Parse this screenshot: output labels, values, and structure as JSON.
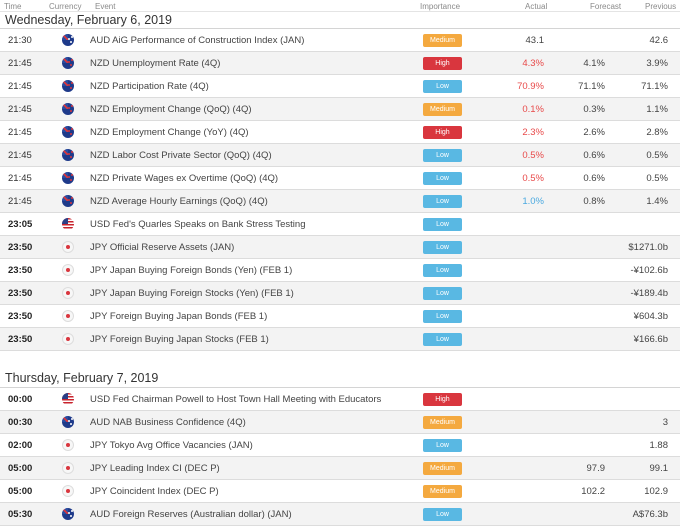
{
  "header": {
    "time": "Time",
    "currency": "Currency",
    "event": "Event",
    "importance": "Importance",
    "actual": "Actual",
    "forecast": "Forecast",
    "previous": "Previous"
  },
  "days": [
    {
      "label": "Wednesday, February 6, 2019",
      "rows": [
        {
          "time": "21:30",
          "bold": false,
          "flag": "au-flag-icon",
          "event": "AUD AiG Performance of Construction Index (JAN)",
          "importance": "Medium",
          "actual": "43.1",
          "actual_tone": "neu",
          "forecast": "",
          "previous": "42.6"
        },
        {
          "time": "21:45",
          "bold": false,
          "flag": "nz-flag-icon",
          "event": "NZD Unemployment Rate (4Q)",
          "importance": "High",
          "actual": "4.3%",
          "actual_tone": "neg",
          "forecast": "4.1%",
          "previous": "3.9%"
        },
        {
          "time": "21:45",
          "bold": false,
          "flag": "nz-flag-icon",
          "event": "NZD Participation Rate (4Q)",
          "importance": "Low",
          "actual": "70.9%",
          "actual_tone": "neg",
          "forecast": "71.1%",
          "previous": "71.1%"
        },
        {
          "time": "21:45",
          "bold": false,
          "flag": "nz-flag-icon",
          "event": "NZD Employment Change (QoQ) (4Q)",
          "importance": "Medium",
          "actual": "0.1%",
          "actual_tone": "neg",
          "forecast": "0.3%",
          "previous": "1.1%"
        },
        {
          "time": "21:45",
          "bold": false,
          "flag": "nz-flag-icon",
          "event": "NZD Employment Change (YoY) (4Q)",
          "importance": "High",
          "actual": "2.3%",
          "actual_tone": "neg",
          "forecast": "2.6%",
          "previous": "2.8%"
        },
        {
          "time": "21:45",
          "bold": false,
          "flag": "nz-flag-icon",
          "event": "NZD Labor Cost Private Sector (QoQ) (4Q)",
          "importance": "Low",
          "actual": "0.5%",
          "actual_tone": "neg",
          "forecast": "0.6%",
          "previous": "0.5%"
        },
        {
          "time": "21:45",
          "bold": false,
          "flag": "nz-flag-icon",
          "event": "NZD Private Wages ex Overtime (QoQ) (4Q)",
          "importance": "Low",
          "actual": "0.5%",
          "actual_tone": "neg",
          "forecast": "0.6%",
          "previous": "0.5%"
        },
        {
          "time": "21:45",
          "bold": false,
          "flag": "nz-flag-icon",
          "event": "NZD Average Hourly Earnings (QoQ) (4Q)",
          "importance": "Low",
          "actual": "1.0%",
          "actual_tone": "pos",
          "forecast": "0.8%",
          "previous": "1.4%"
        },
        {
          "time": "23:05",
          "bold": true,
          "flag": "us-flag-icon",
          "event": "USD Fed's Quarles Speaks on Bank Stress Testing",
          "importance": "Low",
          "actual": "",
          "actual_tone": "neu",
          "forecast": "",
          "previous": ""
        },
        {
          "time": "23:50",
          "bold": true,
          "flag": "jp-flag-icon",
          "event": "JPY Official Reserve Assets (JAN)",
          "importance": "Low",
          "actual": "",
          "actual_tone": "neu",
          "forecast": "",
          "previous": "$1271.0b"
        },
        {
          "time": "23:50",
          "bold": true,
          "flag": "jp-flag-icon",
          "event": "JPY Japan Buying Foreign Bonds (Yen) (FEB 1)",
          "importance": "Low",
          "actual": "",
          "actual_tone": "neu",
          "forecast": "",
          "previous": "-¥102.6b"
        },
        {
          "time": "23:50",
          "bold": true,
          "flag": "jp-flag-icon",
          "event": "JPY Japan Buying Foreign Stocks (Yen) (FEB 1)",
          "importance": "Low",
          "actual": "",
          "actual_tone": "neu",
          "forecast": "",
          "previous": "-¥189.4b"
        },
        {
          "time": "23:50",
          "bold": true,
          "flag": "jp-flag-icon",
          "event": "JPY Foreign Buying Japan Bonds (FEB 1)",
          "importance": "Low",
          "actual": "",
          "actual_tone": "neu",
          "forecast": "",
          "previous": "¥604.3b"
        },
        {
          "time": "23:50",
          "bold": true,
          "flag": "jp-flag-icon",
          "event": "JPY Foreign Buying Japan Stocks (FEB 1)",
          "importance": "Low",
          "actual": "",
          "actual_tone": "neu",
          "forecast": "",
          "previous": "¥166.6b"
        }
      ]
    },
    {
      "label": "Thursday, February 7, 2019",
      "rows": [
        {
          "time": "00:00",
          "bold": true,
          "flag": "us-flag-icon",
          "event": "USD Fed Chairman Powell to Host Town Hall Meeting with Educators",
          "importance": "High",
          "actual": "",
          "actual_tone": "neu",
          "forecast": "",
          "previous": ""
        },
        {
          "time": "00:30",
          "bold": true,
          "flag": "au-flag-icon",
          "event": "AUD NAB Business Confidence (4Q)",
          "importance": "Medium",
          "actual": "",
          "actual_tone": "neu",
          "forecast": "",
          "previous": "3"
        },
        {
          "time": "02:00",
          "bold": true,
          "flag": "jp-flag-icon",
          "event": "JPY Tokyo Avg Office Vacancies (JAN)",
          "importance": "Low",
          "actual": "",
          "actual_tone": "neu",
          "forecast": "",
          "previous": "1.88"
        },
        {
          "time": "05:00",
          "bold": true,
          "flag": "jp-flag-icon",
          "event": "JPY Leading Index CI (DEC P)",
          "importance": "Medium",
          "actual": "",
          "actual_tone": "neu",
          "forecast": "97.9",
          "previous": "99.1"
        },
        {
          "time": "05:00",
          "bold": true,
          "flag": "jp-flag-icon",
          "event": "JPY Coincident Index (DEC P)",
          "importance": "Medium",
          "actual": "",
          "actual_tone": "neu",
          "forecast": "102.2",
          "previous": "102.9"
        },
        {
          "time": "05:30",
          "bold": true,
          "flag": "au-flag-icon",
          "event": "AUD Foreign Reserves (Australian dollar) (JAN)",
          "importance": "Low",
          "actual": "",
          "actual_tone": "neu",
          "forecast": "",
          "previous": "A$76.3b"
        }
      ]
    }
  ],
  "colors": {
    "high": "#d9363e",
    "medium": "#f4a93f",
    "low": "#59b8e3",
    "negative_actual": "#e84a4a",
    "positive_actual": "#4aa9e0"
  }
}
